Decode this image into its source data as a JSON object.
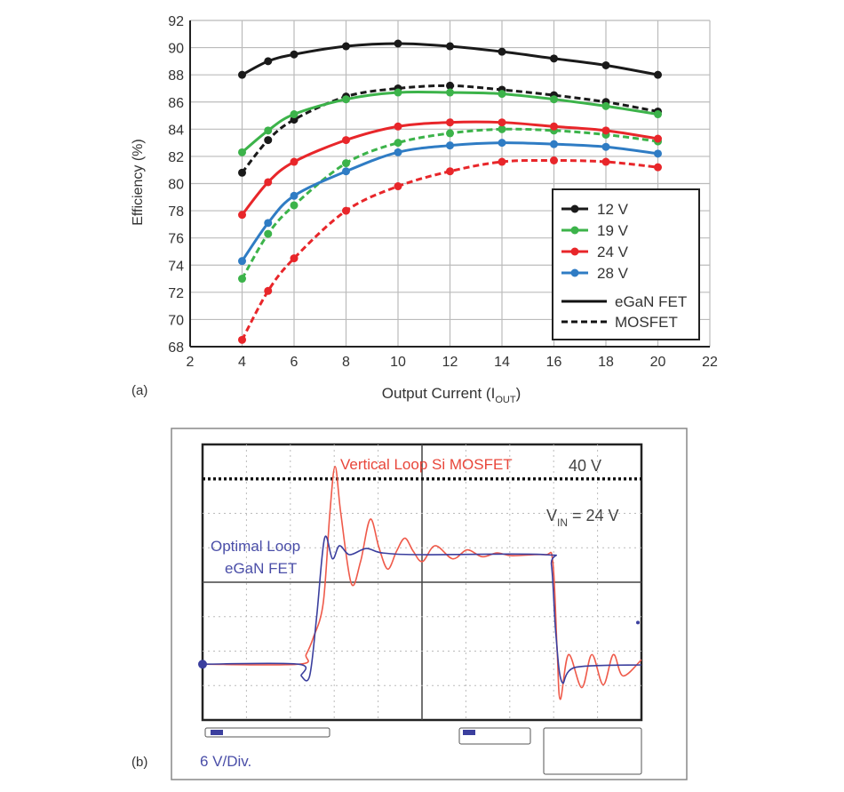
{
  "chart_data": [
    {
      "type": "line",
      "panel_label": "(a)",
      "xlabel": "Output Current (I",
      "xlabel_sub": "OUT",
      "xlabel_end": ")",
      "ylabel": "Efficiency (%)",
      "xlim": [
        2,
        22
      ],
      "ylim": [
        68,
        92
      ],
      "xticks": [
        2,
        4,
        6,
        8,
        10,
        12,
        14,
        16,
        18,
        20,
        22
      ],
      "yticks": [
        68,
        70,
        72,
        74,
        76,
        78,
        80,
        82,
        84,
        86,
        88,
        90,
        92
      ],
      "grid": true,
      "legend_position": "bottom-right",
      "legend": {
        "voltages": [
          {
            "name": "12 V",
            "color": "#1a1a1a"
          },
          {
            "name": "19 V",
            "color": "#3cb34a"
          },
          {
            "name": "24 V",
            "color": "#e8262a"
          },
          {
            "name": "28 V",
            "color": "#2f7cc4"
          }
        ],
        "styles": [
          {
            "name": "eGaN FET",
            "dash": false
          },
          {
            "name": "MOSFET",
            "dash": true
          }
        ]
      },
      "x": [
        4,
        5,
        6,
        8,
        10,
        12,
        14,
        16,
        18,
        20
      ],
      "series": [
        {
          "voltage": "12 V",
          "device": "eGaN FET",
          "color": "#1a1a1a",
          "dash": false,
          "values": [
            88.0,
            89.0,
            89.5,
            90.1,
            90.3,
            90.1,
            89.7,
            89.2,
            88.7,
            88.0
          ]
        },
        {
          "voltage": "12 V",
          "device": "MOSFET",
          "color": "#1a1a1a",
          "dash": true,
          "values": [
            80.8,
            83.2,
            84.7,
            86.4,
            87.0,
            87.2,
            86.9,
            86.5,
            86.0,
            85.3
          ]
        },
        {
          "voltage": "19 V",
          "device": "eGaN FET",
          "color": "#3cb34a",
          "dash": false,
          "values": [
            82.3,
            83.9,
            85.1,
            86.2,
            86.7,
            86.7,
            86.6,
            86.2,
            85.7,
            85.1
          ]
        },
        {
          "voltage": "19 V",
          "device": "MOSFET",
          "color": "#3cb34a",
          "dash": true,
          "values": [
            73.0,
            76.3,
            78.4,
            81.5,
            83.0,
            83.7,
            84.0,
            83.9,
            83.6,
            83.1
          ]
        },
        {
          "voltage": "24 V",
          "device": "eGaN FET",
          "color": "#e8262a",
          "dash": false,
          "values": [
            77.7,
            80.1,
            81.6,
            83.2,
            84.2,
            84.5,
            84.5,
            84.2,
            83.9,
            83.3
          ]
        },
        {
          "voltage": "24 V",
          "device": "MOSFET",
          "color": "#e8262a",
          "dash": true,
          "values": [
            68.5,
            72.1,
            74.5,
            78.0,
            79.8,
            80.9,
            81.6,
            81.7,
            81.6,
            81.2
          ]
        },
        {
          "voltage": "28 V",
          "device": "eGaN FET",
          "color": "#2f7cc4",
          "dash": false,
          "values": [
            74.3,
            77.1,
            79.1,
            80.9,
            82.3,
            82.8,
            83.0,
            82.9,
            82.7,
            82.2
          ]
        }
      ]
    },
    {
      "type": "line",
      "panel_label": "(b)",
      "scale_label": "6 V/Div.",
      "xlim_divisions": [
        0,
        10
      ],
      "ylim_divisions": [
        0,
        8
      ],
      "grid": true,
      "reference_line": {
        "label": "40 V",
        "level_div": 7.0
      },
      "vin_label": {
        "prefix": "V",
        "sub": "IN",
        "suffix": " = 24 V"
      },
      "series": [
        {
          "name": "Vertical Loop Si MOSFET",
          "color": "#ef5a4a",
          "points": [
            [
              0,
              1.62
            ],
            [
              2.2,
              1.62
            ],
            [
              2.36,
              1.9
            ],
            [
              2.52,
              2.38
            ],
            [
              2.75,
              3.4
            ],
            [
              2.9,
              6.0
            ],
            [
              3.02,
              7.36
            ],
            [
              3.15,
              6.0
            ],
            [
              3.39,
              3.96
            ],
            [
              3.6,
              4.6
            ],
            [
              3.82,
              5.83
            ],
            [
              4.02,
              5.0
            ],
            [
              4.22,
              4.38
            ],
            [
              4.42,
              4.9
            ],
            [
              4.61,
              5.28
            ],
            [
              4.8,
              4.9
            ],
            [
              5.01,
              4.6
            ],
            [
              5.3,
              5.06
            ],
            [
              5.7,
              4.68
            ],
            [
              6.03,
              4.94
            ],
            [
              6.37,
              4.74
            ],
            [
              6.71,
              4.85
            ],
            [
              7.05,
              4.77
            ],
            [
              7.8,
              4.8
            ],
            [
              7.98,
              4.6
            ],
            [
              8.08,
              2.0
            ],
            [
              8.15,
              0.6
            ],
            [
              8.34,
              1.9
            ],
            [
              8.64,
              0.94
            ],
            [
              8.87,
              1.9
            ],
            [
              9.13,
              1.02
            ],
            [
              9.36,
              1.9
            ],
            [
              9.58,
              1.28
            ],
            [
              10,
              1.75
            ]
          ]
        },
        {
          "name": "Optimal Loop eGaN FET",
          "name_line2": "",
          "color": "#3b3f9e",
          "points": [
            [
              0,
              1.62
            ],
            [
              2.18,
              1.62
            ],
            [
              2.25,
              1.28
            ],
            [
              2.44,
              1.28
            ],
            [
              2.6,
              3.0
            ],
            [
              2.78,
              5.28
            ],
            [
              2.96,
              4.68
            ],
            [
              3.12,
              5.06
            ],
            [
              3.35,
              4.8
            ],
            [
              3.73,
              4.98
            ],
            [
              4.1,
              4.85
            ],
            [
              5.0,
              4.8
            ],
            [
              7.81,
              4.8
            ],
            [
              7.95,
              4.5
            ],
            [
              8.05,
              2.5
            ],
            [
              8.19,
              1.1
            ],
            [
              8.5,
              1.53
            ],
            [
              10,
              1.6
            ]
          ]
        }
      ],
      "label_line1": "Optimal Loop",
      "label_line2": "eGaN FET"
    }
  ]
}
